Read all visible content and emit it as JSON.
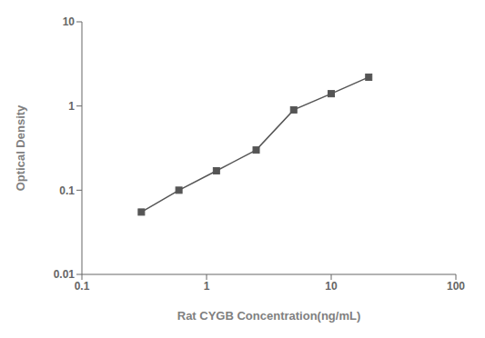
{
  "chart_data": {
    "type": "line",
    "x": [
      0.3,
      0.6,
      1.2,
      2.5,
      5,
      10,
      20
    ],
    "values": [
      0.055,
      0.1,
      0.17,
      0.3,
      0.9,
      1.4,
      2.2
    ],
    "xlabel": "Rat CYGB Concentration(ng/mL)",
    "ylabel": "Optical Density",
    "xlim": [
      0.1,
      100
    ],
    "ylim": [
      0.01,
      10
    ],
    "xticks": [
      0.1,
      1,
      10,
      100
    ],
    "yticks": [
      0.01,
      0.1,
      1,
      10
    ],
    "log": true,
    "grid": false,
    "color": "#555555",
    "marker": "square"
  }
}
